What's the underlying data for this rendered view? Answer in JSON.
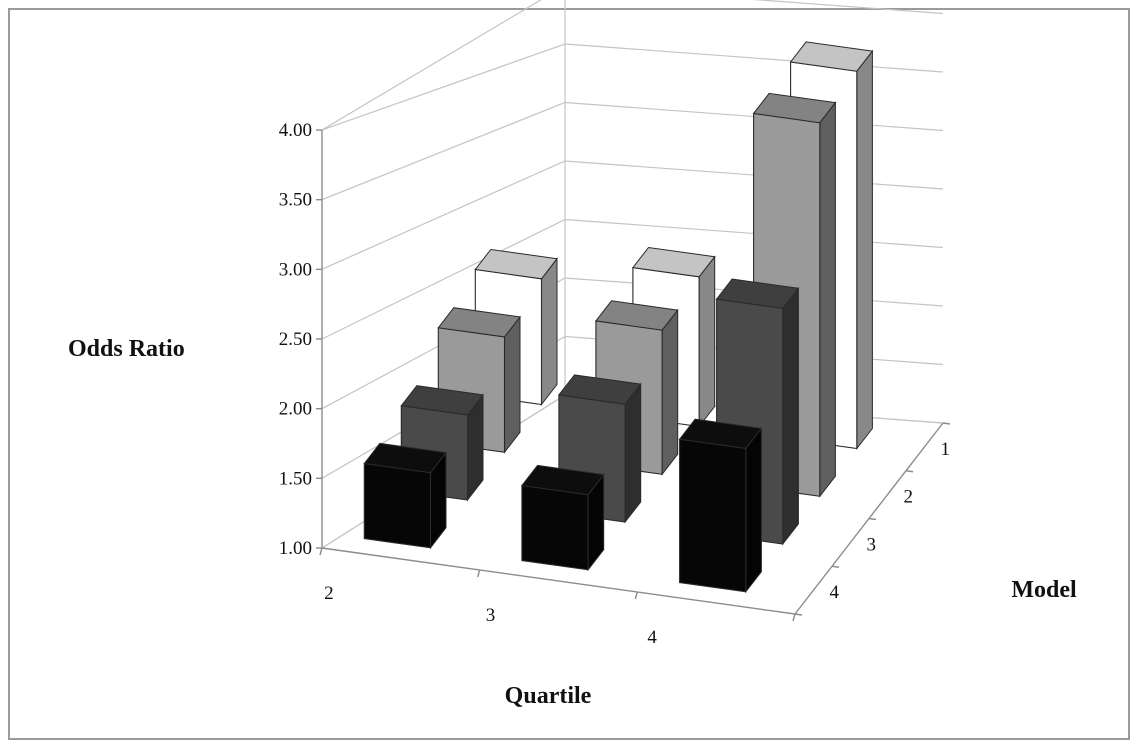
{
  "chart_data": {
    "type": "bar",
    "variant": "3d-column",
    "title": "",
    "ylabel": "Odds Ratio",
    "xlabel": "Quartile",
    "zlabel": "Model",
    "categories": [
      "2",
      "3",
      "4"
    ],
    "series": [
      {
        "name": "1",
        "values": [
          2.05,
          2.25,
          4.15
        ],
        "color": "#ffffff"
      },
      {
        "name": "2",
        "values": [
          1.92,
          2.15,
          3.98
        ],
        "color": "#9a9a9a"
      },
      {
        "name": "3",
        "values": [
          1.65,
          1.9,
          2.8
        ],
        "color": "#4a4a4a"
      },
      {
        "name": "4",
        "values": [
          1.55,
          1.55,
          2.05
        ],
        "color": "#060606"
      }
    ],
    "ylim": [
      1.0,
      4.0
    ],
    "yticks": [
      "1.00",
      "1.50",
      "2.00",
      "2.50",
      "3.00",
      "3.50",
      "4.00"
    ],
    "grid": true,
    "legend": "none"
  }
}
